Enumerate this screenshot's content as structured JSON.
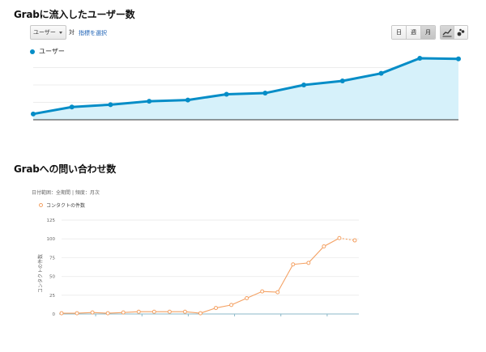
{
  "section1": {
    "title": "Grabに流入したユーザー数",
    "dropdown_label": "ユーザー",
    "vs_label": "対",
    "metric_link": "指標を選択",
    "period_buttons": [
      "日",
      "週",
      "月"
    ],
    "active_period": "月",
    "view_icons": [
      "line-chart-icon",
      "motion-chart-icon"
    ],
    "legend": "ユーザー",
    "colors": {
      "line": "#058dc7",
      "fill": "#d6f1fa"
    }
  },
  "section2": {
    "title": "Grabへの問い合わせ数",
    "meta_prefix": "日付範囲：",
    "meta_range": "全期間",
    "meta_separator": " | ",
    "meta_freq_prefix": "頻度：",
    "meta_freq": "月次",
    "legend": "コンタクトの件数",
    "colors": {
      "line": "#f4a163"
    }
  },
  "chart_data": [
    {
      "type": "area",
      "series": [
        {
          "name": "ユーザー",
          "values": [
            10,
            22,
            26,
            32,
            34,
            44,
            46,
            60,
            67,
            80,
            106,
            105
          ]
        }
      ],
      "ylim": [
        0,
        120
      ],
      "grid": true,
      "legend": "top-left"
    },
    {
      "type": "line",
      "series": [
        {
          "name": "コンタクトの件数",
          "values": [
            1,
            1,
            2,
            1,
            2,
            3,
            3,
            3,
            3,
            1,
            8,
            12,
            21,
            30,
            29,
            66,
            68,
            90,
            101,
            98
          ]
        }
      ],
      "ylabel": "コンタクトの件数",
      "yticks": [
        0,
        25,
        50,
        75,
        100,
        125
      ],
      "ylim": [
        0,
        125
      ],
      "grid": true,
      "legend": "top-left"
    }
  ]
}
